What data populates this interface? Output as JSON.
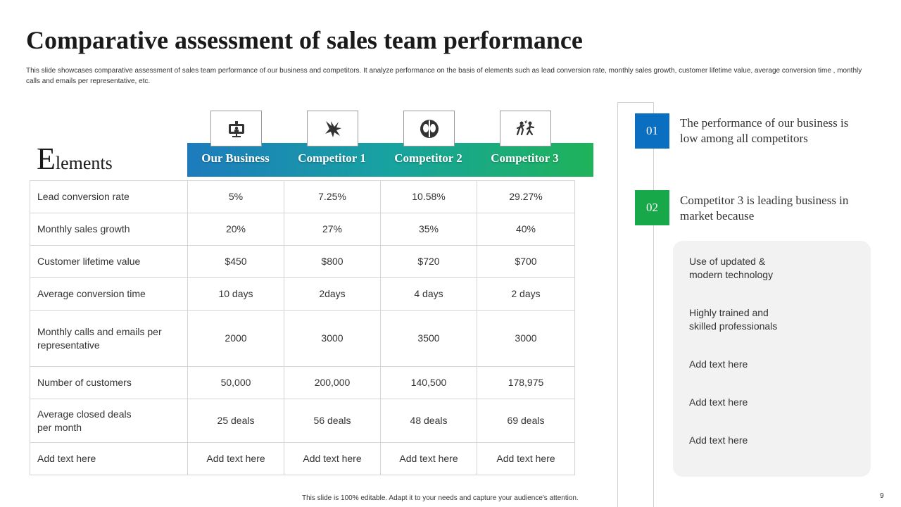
{
  "slide": {
    "title": "Comparative assessment of sales team performance",
    "subtitle": "This slide showcases comparative assessment of sales team performance of our business and competitors. It analyze performance on the basis of elements such as lead conversion rate, monthly sales growth, customer lifetime value, average conversion time , monthly calls and emails per representative, etc.",
    "footer": "This slide is 100% editable. Adapt it to your needs and capture your audience's attention.",
    "page_number": "9"
  },
  "table": {
    "heading_initial": "E",
    "heading_rest": "lements",
    "columns": [
      {
        "label": "Our Business",
        "icon": "presentation-icon"
      },
      {
        "label": "Competitor 1",
        "icon": "splash-icon"
      },
      {
        "label": "Competitor 2",
        "icon": "faces-icon"
      },
      {
        "label": "Competitor 3",
        "icon": "running-people-icon"
      }
    ],
    "rows": [
      {
        "label": "Lead conversion rate",
        "values": [
          "5%",
          "7.25%",
          "10.58%",
          "29.27%"
        ]
      },
      {
        "label": "Monthly sales growth",
        "values": [
          "20%",
          "27%",
          "35%",
          "40%"
        ]
      },
      {
        "label": "Customer lifetime value",
        "values": [
          "$450",
          "$800",
          "$720",
          "$700"
        ]
      },
      {
        "label": "Average conversion time",
        "values": [
          "10 days",
          "2days",
          "4 days",
          "2 days"
        ]
      },
      {
        "label": "Monthly calls and emails per representative",
        "values": [
          "2000",
          "3000",
          "3500",
          "3000"
        ]
      },
      {
        "label": "Number of customers",
        "values": [
          "50,000",
          "200,000",
          "140,500",
          "178,975"
        ]
      },
      {
        "label": "Average closed deals per month",
        "values": [
          "25 deals",
          "56 deals",
          "48 deals",
          "69 deals"
        ]
      },
      {
        "label": "Add text here",
        "values": [
          "Add text here",
          "Add text here",
          "Add text here",
          "Add text here"
        ]
      }
    ]
  },
  "insights": {
    "points": [
      {
        "number": "01",
        "text": "The performance of our business is low among all competitors",
        "color": "#0b6fc1"
      },
      {
        "number": "02",
        "text": "Competitor 3 is leading business in market because",
        "color": "#17a84a"
      }
    ],
    "reasons": [
      "Use of updated & modern technology",
      "Highly trained and skilled professionals",
      "Add text here",
      "Add text here",
      "Add text here"
    ]
  }
}
